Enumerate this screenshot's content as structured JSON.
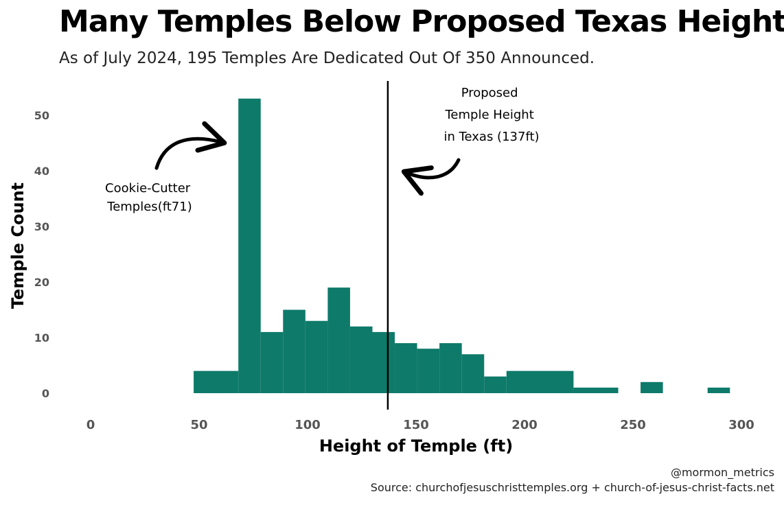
{
  "header": {
    "title": "Many Temples Below Proposed Texas Height",
    "subtitle": "As of July 2024, 195 Temples Are Dedicated Out Of 350 Announced."
  },
  "footer": {
    "handle": "@mormon_metrics",
    "source": "Source: churchofjesuschristtemples.org + church-of-jesus-christ-facts.net"
  },
  "colors": {
    "bar": "#0e7a6a",
    "line": "#000000",
    "tick": "#555555"
  },
  "chart_data": {
    "type": "bar",
    "subtype": "histogram",
    "title": "Many Temples Below Proposed Texas Height",
    "xlabel": "Height of Temple (ft)",
    "ylabel": "Temple Count",
    "xlim": [
      0,
      300
    ],
    "ylim": [
      0,
      55
    ],
    "xticks": [
      0,
      50,
      100,
      150,
      200,
      250,
      300
    ],
    "yticks": [
      0,
      10,
      20,
      30,
      40,
      50
    ],
    "grid": false,
    "bins": [
      {
        "x0": 47.5,
        "x1": 68.1,
        "count": 4
      },
      {
        "x0": 68.1,
        "x1": 78.4,
        "count": 53
      },
      {
        "x0": 78.4,
        "x1": 88.7,
        "count": 11
      },
      {
        "x0": 88.7,
        "x1": 99.0,
        "count": 15
      },
      {
        "x0": 99.0,
        "x1": 109.3,
        "count": 13
      },
      {
        "x0": 109.3,
        "x1": 119.6,
        "count": 19
      },
      {
        "x0": 119.6,
        "x1": 129.9,
        "count": 12
      },
      {
        "x0": 129.9,
        "x1": 140.2,
        "count": 11
      },
      {
        "x0": 140.2,
        "x1": 150.5,
        "count": 9
      },
      {
        "x0": 150.5,
        "x1": 160.8,
        "count": 8
      },
      {
        "x0": 160.8,
        "x1": 171.1,
        "count": 9
      },
      {
        "x0": 171.1,
        "x1": 181.4,
        "count": 7
      },
      {
        "x0": 181.4,
        "x1": 191.7,
        "count": 3
      },
      {
        "x0": 191.7,
        "x1": 222.6,
        "count": 4
      },
      {
        "x0": 222.6,
        "x1": 243.2,
        "count": 1
      },
      {
        "x0": 253.5,
        "x1": 263.8,
        "count": 2
      },
      {
        "x0": 284.4,
        "x1": 294.7,
        "count": 1
      }
    ],
    "reference_line": {
      "x": 137,
      "label": [
        "Proposed",
        "Temple Height",
        "in Texas (137ft)"
      ]
    },
    "annotations": [
      {
        "name": "cookie-cutter",
        "lines": [
          "Cookie-Cutter",
          "Temples(ft71)"
        ],
        "points_to": {
          "x": 71,
          "y": 45
        }
      },
      {
        "name": "proposed-height",
        "lines": [
          "Proposed",
          "Temple Height",
          "in Texas (137ft)"
        ],
        "points_to": {
          "x": 137,
          "y": 40
        }
      }
    ]
  }
}
